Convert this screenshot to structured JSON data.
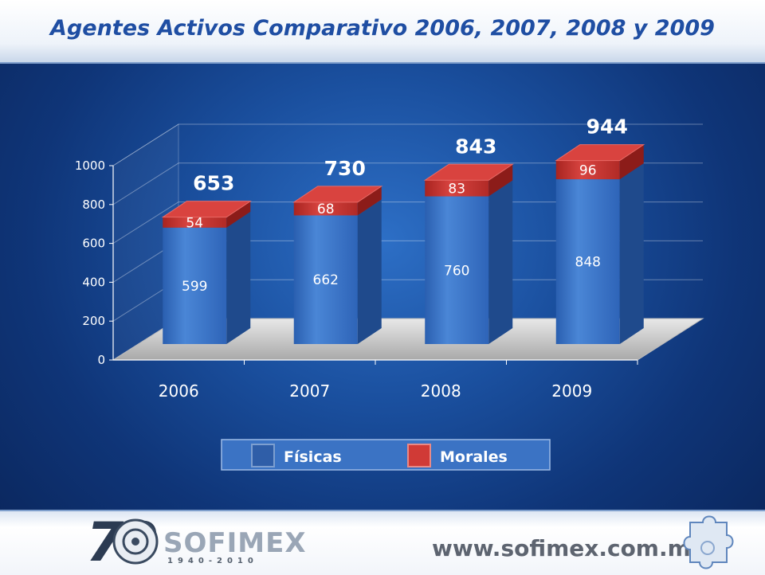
{
  "title": "Agentes Activos Comparativo 2006, 2007, 2008 y 2009",
  "chart_data": {
    "type": "bar",
    "stacked": true,
    "three_d": true,
    "categories": [
      "2006",
      "2007",
      "2008",
      "2009"
    ],
    "series": [
      {
        "name": "Físicas",
        "values": [
          599,
          662,
          760,
          848
        ],
        "color": "#3a74c9"
      },
      {
        "name": "Morales",
        "values": [
          54,
          68,
          83,
          96
        ],
        "color": "#c0302c"
      }
    ],
    "totals": [
      653,
      730,
      843,
      944
    ],
    "yticks": [
      0,
      200,
      400,
      600,
      800,
      1000
    ],
    "ylim": [
      0,
      1000
    ],
    "grid": true,
    "legend": "bottom"
  },
  "footer": {
    "logo_number": "70",
    "logo_name": "SOFIMEX",
    "logo_years": "1940-2010",
    "url": "www.sofimex.com.mx"
  }
}
